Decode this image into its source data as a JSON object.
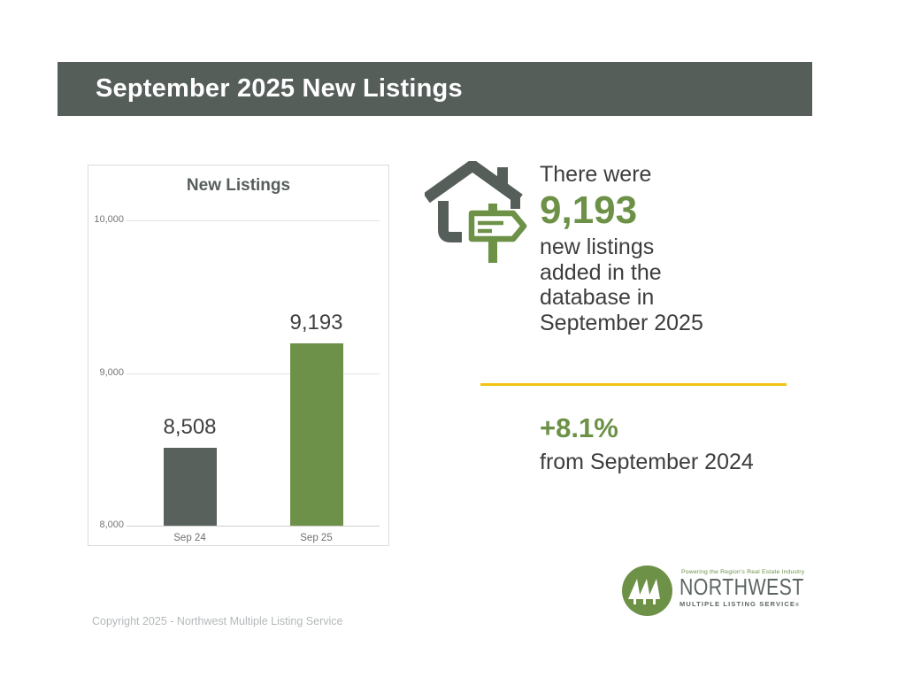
{
  "header": {
    "title": "September 2025 New Listings"
  },
  "chart_data": {
    "type": "bar",
    "title": "New Listings",
    "categories": [
      "Sep 24",
      "Sep 25"
    ],
    "values": [
      8508,
      9193
    ],
    "value_labels": [
      "8,508",
      "9,193"
    ],
    "bar_colors": [
      "#59615d",
      "#6d9148"
    ],
    "xlabel": "",
    "ylabel": "",
    "ylim": [
      8000,
      10000
    ],
    "yticks": [
      8000,
      9000,
      10000
    ],
    "ytick_labels": [
      "8,000",
      "9,000",
      "10,000"
    ],
    "grid": true,
    "legend": "none"
  },
  "highlight": {
    "intro": "There were",
    "value": "9,193",
    "lines": [
      "new listings",
      "added in the",
      "database in",
      "September 2025"
    ]
  },
  "change": {
    "value": "+8.1%",
    "caption": "from September 2024"
  },
  "logo": {
    "tagline": "Powering the Region's Real Estate Industry",
    "name": "NORTHWEST",
    "subtitle": "MULTIPLE LISTING SERVICE",
    "registered": "®"
  },
  "copyright": "Copyright 2025 - Northwest Multiple Listing Service",
  "colors": {
    "header_dark": "#565e5a",
    "bar_gray": "#59615d",
    "accent_green": "#6c9147",
    "icon_green": "#6d9148",
    "divider_yellow": "#f2c311",
    "logo_gray": "#5d6562"
  },
  "icons": {
    "stat_icon": "house-with-signpost-icon",
    "logo_icon": "pine-trees-logo-icon"
  }
}
